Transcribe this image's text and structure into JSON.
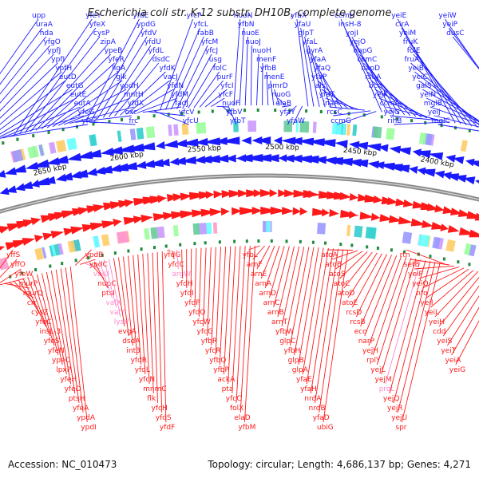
{
  "title": "Escherichia coli str. K-12 substr. DH10B, complete genome",
  "accession": "Accession: NC_010473",
  "summary": "Topology: circular; Length: 4,686,137 bp; Genes: 4,271",
  "colors": {
    "forward": "#1a1aff",
    "reverse": "#ff1a1a",
    "pseudo": "#ff88cc",
    "backbone": "#8a8a8a",
    "bar": "#1f8a3a"
  },
  "scale_labels": [
    "2700 kbp",
    "2650 kbp",
    "2600 kbp",
    "2550 kbp",
    "2500 kbp",
    "2450 kbp",
    "2400 kbp",
    "2350 kbp"
  ],
  "forward_genes": [
    "upp",
    "uraA",
    "hda",
    "yfgO",
    "ypfJ",
    "ypfI",
    "ypfH",
    "eutD",
    "eutG",
    "eutE",
    "eutA",
    "yfeG",
    "yfeZ",
    "yfeY",
    "yfeX",
    "cysP",
    "zipA",
    "ypeB",
    "yfeR",
    "ligA",
    "glk",
    "ypdH",
    "mntH",
    "yfdX",
    "oxc",
    "frc",
    "yfdE",
    "ypdG",
    "yfdV",
    "yfdU",
    "yfdL",
    "dsdC",
    "yfdK",
    "vacJ",
    "yfdN",
    "yfdM",
    "fadJ",
    "yfcV",
    "yfcU",
    "yfcP",
    "yfcL",
    "fabB",
    "yfcM",
    "yfcJ",
    "usg",
    "folC",
    "purF",
    "yfcI",
    "yfcF",
    "nuoF",
    "yfbV",
    "yfbT",
    "nuoN",
    "yfbN",
    "nuoE",
    "nuoJ",
    "nuoH",
    "menF",
    "yfbB",
    "menE",
    "pmrD",
    "nuoG",
    "elaB",
    "yfaY",
    "yfaW",
    "yfaX",
    "yfaU",
    "glpT",
    "yfaL",
    "gyrA",
    "yfaA",
    "yfaQ",
    "yfaP",
    "ais",
    "yfaT",
    "inaA",
    "rcsC",
    "ccmG",
    "ccmH",
    "insH-8",
    "yojI",
    "yejO",
    "napG",
    "ccmC",
    "napD",
    "rsuA",
    "bcr",
    "yejK",
    "ccmA",
    "yejG",
    "rihB",
    "yeiE",
    "cirA",
    "yeiM",
    "fruK",
    "folE",
    "fruA",
    "yeiB",
    "yeiC",
    "galS",
    "yeiN",
    "mglB",
    "yeiJ",
    "mglC",
    "yeiW",
    "yeiP",
    "dusC"
  ],
  "reverse_genes": [
    "yffS",
    "yffO",
    "yfeW",
    "murP",
    "murQ",
    "crr",
    "cysZ",
    "yfeC",
    "insL-3",
    "yfeS",
    "yfeN",
    "ypeC",
    "lpxP",
    "yfeH",
    "yfeD",
    "ptsH",
    "yfeA",
    "ypdA",
    "ypdI",
    "ypdB",
    "ypdC",
    "valU",
    "nupC",
    "ptsI",
    "valX",
    "valY",
    "lysV",
    "evgA",
    "dsdA",
    "int3",
    "yfdR",
    "yfdL",
    "yfcN",
    "mnmC",
    "flk",
    "yfcH",
    "yfdS",
    "yfdF",
    "yfdG",
    "yfdC",
    "argW",
    "yfdH",
    "yfdI",
    "yfdP",
    "yfdQ",
    "yfcW",
    "yfcG",
    "yfbR",
    "yfcR",
    "yfbQ",
    "yfbP",
    "ackA",
    "pta",
    "yfcC",
    "folX",
    "elaD",
    "yfbM",
    "yfbL",
    "arnF",
    "arnE",
    "arnA",
    "arnD",
    "arnC",
    "arnB",
    "arnT",
    "yfbW",
    "glpC",
    "yfbH",
    "glpB",
    "glpA",
    "yfaE",
    "yfaH",
    "nrdA",
    "nrdB",
    "yfaD",
    "ubiG",
    "atoA",
    "atoB",
    "atoS",
    "atoC",
    "atoD",
    "atoE",
    "rcsD",
    "rcsB",
    "eco",
    "narP",
    "yejH",
    "rplY",
    "yejL",
    "yejM",
    "proL",
    "yejQ",
    "yejR",
    "yejU",
    "spr",
    "rtn",
    "setB",
    "yeiP",
    "yeiQ",
    "nfo",
    "yeiI",
    "yeiL",
    "yeiH",
    "cdd",
    "yeiS",
    "yeiT",
    "yeiA",
    "yeiG"
  ],
  "scale_marks": [
    2700,
    2650,
    2600,
    2550,
    2500,
    2450,
    2400,
    2350
  ]
}
